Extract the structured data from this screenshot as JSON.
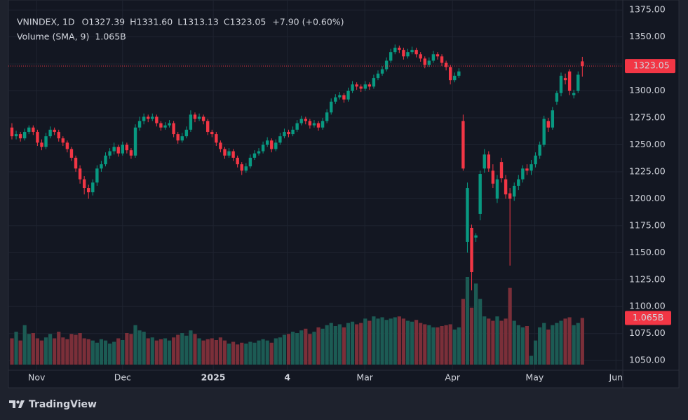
{
  "chart_data": {
    "type": "candlestick",
    "title": "VNINDEX, 1D",
    "ohlc_names": [
      "O",
      "H",
      "L",
      "C"
    ],
    "ohlc_labels": [
      "1327.39",
      "1331.60",
      "1313.13",
      "1323.05"
    ],
    "change_label": "+7.90 (+0.60%)",
    "volume_title": "Volume (SMA, 9)",
    "volume_label": "1.065B",
    "brand": "TradingView",
    "up_color": "#089981",
    "down_color": "#f23645",
    "volume_up_color": "#1c5b54",
    "volume_down_color": "#7b2f39",
    "grid": true,
    "ylim": [
      1041,
      1381
    ],
    "yticks": [
      {
        "value": 1050,
        "label": "1050.00"
      },
      {
        "value": 1075,
        "label": "1075.00"
      },
      {
        "value": 1100,
        "label": "1100.00"
      },
      {
        "value": 1125,
        "label": "1125.00"
      },
      {
        "value": 1150,
        "label": "1150.00"
      },
      {
        "value": 1175,
        "label": "1175.00"
      },
      {
        "value": 1200,
        "label": "1200.00"
      },
      {
        "value": 1225,
        "label": "1225.00"
      },
      {
        "value": 1250,
        "label": "1250.00"
      },
      {
        "value": 1275,
        "label": "1275.00"
      },
      {
        "value": 1300,
        "label": "1300.00"
      },
      {
        "value": 1325,
        "label": "1325.00"
      },
      {
        "value": 1350,
        "label": "1350.00"
      },
      {
        "value": 1375,
        "label": "1375.00"
      }
    ],
    "xlim": [
      -0.82,
      143.5
    ],
    "xticks": [
      {
        "value": 5.8,
        "label": "Nov"
      },
      {
        "value": 26,
        "label": "Dec"
      },
      {
        "value": 47.3,
        "label": "2025"
      },
      {
        "value": 64.7,
        "label": "4"
      },
      {
        "value": 82.9,
        "label": "Mar"
      },
      {
        "value": 103.5,
        "label": "Apr"
      },
      {
        "value": 122.8,
        "label": "May"
      },
      {
        "value": 141.9,
        "label": "Jun"
      }
    ],
    "volume_ylim": [
      0,
      2.0
    ],
    "candles": [
      [
        1266,
        1270,
        1255,
        1258
      ],
      [
        1258,
        1263,
        1255,
        1260
      ],
      [
        1260,
        1262,
        1253,
        1256
      ],
      [
        1256,
        1265,
        1254,
        1262
      ],
      [
        1262,
        1268,
        1260,
        1266
      ],
      [
        1266,
        1268,
        1259,
        1262
      ],
      [
        1262,
        1264,
        1249,
        1252
      ],
      [
        1252,
        1255,
        1245,
        1248
      ],
      [
        1248,
        1261,
        1246,
        1258
      ],
      [
        1258,
        1267,
        1256,
        1264
      ],
      [
        1264,
        1266,
        1259,
        1262
      ],
      [
        1262,
        1264,
        1253,
        1256
      ],
      [
        1256,
        1258,
        1249,
        1252
      ],
      [
        1252,
        1254,
        1243,
        1246
      ],
      [
        1246,
        1248,
        1235,
        1238
      ],
      [
        1238,
        1240,
        1225,
        1228
      ],
      [
        1228,
        1231,
        1214,
        1218
      ],
      [
        1218,
        1221,
        1204,
        1210
      ],
      [
        1210,
        1213,
        1200,
        1206
      ],
      [
        1206,
        1218,
        1203,
        1215
      ],
      [
        1215,
        1231,
        1212,
        1228
      ],
      [
        1228,
        1235,
        1225,
        1232
      ],
      [
        1232,
        1243,
        1230,
        1240
      ],
      [
        1240,
        1247,
        1237,
        1244
      ],
      [
        1244,
        1252,
        1241,
        1248
      ],
      [
        1248,
        1250,
        1239,
        1242
      ],
      [
        1242,
        1253,
        1240,
        1250
      ],
      [
        1250,
        1252,
        1242,
        1245
      ],
      [
        1245,
        1247,
        1237,
        1240
      ],
      [
        1240,
        1269,
        1238,
        1266
      ],
      [
        1266,
        1276,
        1263,
        1272
      ],
      [
        1272,
        1279,
        1269,
        1276
      ],
      [
        1276,
        1278,
        1271,
        1274
      ],
      [
        1274,
        1279,
        1272,
        1276
      ],
      [
        1276,
        1278,
        1267,
        1270
      ],
      [
        1270,
        1272,
        1263,
        1266
      ],
      [
        1266,
        1271,
        1264,
        1268
      ],
      [
        1268,
        1273,
        1266,
        1270
      ],
      [
        1270,
        1272,
        1257,
        1260
      ],
      [
        1260,
        1262,
        1251,
        1254
      ],
      [
        1254,
        1261,
        1252,
        1258
      ],
      [
        1258,
        1267,
        1256,
        1264
      ],
      [
        1264,
        1282,
        1262,
        1278
      ],
      [
        1278,
        1280,
        1271,
        1274
      ],
      [
        1274,
        1279,
        1272,
        1276
      ],
      [
        1276,
        1278,
        1269,
        1272
      ],
      [
        1272,
        1274,
        1259,
        1262
      ],
      [
        1262,
        1264,
        1257,
        1260
      ],
      [
        1260,
        1262,
        1249,
        1252
      ],
      [
        1252,
        1254,
        1243,
        1246
      ],
      [
        1246,
        1248,
        1237,
        1240
      ],
      [
        1240,
        1247,
        1238,
        1244
      ],
      [
        1244,
        1246,
        1235,
        1238
      ],
      [
        1238,
        1240,
        1229,
        1232
      ],
      [
        1232,
        1234,
        1222,
        1226
      ],
      [
        1226,
        1233,
        1224,
        1230
      ],
      [
        1230,
        1241,
        1228,
        1238
      ],
      [
        1238,
        1245,
        1236,
        1242
      ],
      [
        1242,
        1247,
        1240,
        1244
      ],
      [
        1244,
        1253,
        1242,
        1250
      ],
      [
        1250,
        1257,
        1248,
        1254
      ],
      [
        1254,
        1256,
        1243,
        1246
      ],
      [
        1246,
        1255,
        1244,
        1252
      ],
      [
        1252,
        1261,
        1250,
        1258
      ],
      [
        1258,
        1265,
        1256,
        1262
      ],
      [
        1262,
        1264,
        1257,
        1260
      ],
      [
        1260,
        1267,
        1258,
        1264
      ],
      [
        1264,
        1273,
        1262,
        1270
      ],
      [
        1270,
        1277,
        1268,
        1274
      ],
      [
        1274,
        1276,
        1269,
        1272
      ],
      [
        1272,
        1274,
        1265,
        1268
      ],
      [
        1268,
        1273,
        1266,
        1270
      ],
      [
        1270,
        1272,
        1263,
        1266
      ],
      [
        1266,
        1275,
        1264,
        1272
      ],
      [
        1272,
        1283,
        1270,
        1280
      ],
      [
        1280,
        1293,
        1278,
        1290
      ],
      [
        1290,
        1297,
        1288,
        1294
      ],
      [
        1294,
        1299,
        1292,
        1296
      ],
      [
        1296,
        1298,
        1289,
        1292
      ],
      [
        1292,
        1303,
        1290,
        1300
      ],
      [
        1300,
        1309,
        1298,
        1306
      ],
      [
        1306,
        1308,
        1301,
        1304
      ],
      [
        1304,
        1306,
        1299,
        1302
      ],
      [
        1302,
        1309,
        1300,
        1306
      ],
      [
        1306,
        1308,
        1301,
        1304
      ],
      [
        1304,
        1315,
        1302,
        1312
      ],
      [
        1312,
        1319,
        1310,
        1316
      ],
      [
        1316,
        1323,
        1314,
        1320
      ],
      [
        1320,
        1331,
        1318,
        1328
      ],
      [
        1328,
        1339,
        1326,
        1336
      ],
      [
        1336,
        1343,
        1334,
        1340
      ],
      [
        1340,
        1342,
        1335,
        1338
      ],
      [
        1338,
        1340,
        1329,
        1332
      ],
      [
        1332,
        1339,
        1330,
        1336
      ],
      [
        1336,
        1341,
        1334,
        1338
      ],
      [
        1338,
        1340,
        1331,
        1334
      ],
      [
        1334,
        1336,
        1327,
        1330
      ],
      [
        1330,
        1332,
        1321,
        1324
      ],
      [
        1324,
        1331,
        1322,
        1328
      ],
      [
        1328,
        1337,
        1326,
        1334
      ],
      [
        1334,
        1336,
        1329,
        1332
      ],
      [
        1332,
        1334,
        1323,
        1326
      ],
      [
        1326,
        1328,
        1319,
        1322
      ],
      [
        1322,
        1324,
        1306,
        1310
      ],
      [
        1310,
        1317,
        1308,
        1314
      ],
      [
        1314,
        1321,
        1312,
        1318
      ],
      [
        1272,
        1278,
        1226,
        1228
      ],
      [
        1160,
        1215,
        1150,
        1210
      ],
      [
        1173,
        1176,
        1115,
        1132
      ],
      [
        1164,
        1168,
        1160,
        1166
      ],
      [
        1186,
        1226,
        1180,
        1223
      ],
      [
        1228,
        1246,
        1224,
        1241
      ],
      [
        1241,
        1244,
        1225,
        1228
      ],
      [
        1226,
        1232,
        1210,
        1214
      ],
      [
        1200,
        1222,
        1196,
        1218
      ],
      [
        1234,
        1238,
        1215,
        1219
      ],
      [
        1218,
        1222,
        1200,
        1204
      ],
      [
        1205,
        1210,
        1138,
        1200
      ],
      [
        1202,
        1215,
        1198,
        1212
      ],
      [
        1212,
        1222,
        1208,
        1218
      ],
      [
        1218,
        1231,
        1215,
        1228
      ],
      [
        1228,
        1232,
        1222,
        1226
      ],
      [
        1226,
        1236,
        1222,
        1232
      ],
      [
        1232,
        1243,
        1229,
        1240
      ],
      [
        1240,
        1253,
        1237,
        1250
      ],
      [
        1250,
        1277,
        1248,
        1274
      ],
      [
        1272,
        1275,
        1262,
        1266
      ],
      [
        1266,
        1285,
        1264,
        1282
      ],
      [
        1290,
        1300,
        1287,
        1298
      ],
      [
        1298,
        1317,
        1295,
        1314
      ],
      [
        1312,
        1316,
        1306,
        1310
      ],
      [
        1318,
        1320,
        1296,
        1300
      ],
      [
        1296,
        1301,
        1293,
        1298
      ],
      [
        1300,
        1318,
        1298,
        1315
      ],
      [
        1327.39,
        1331.6,
        1313.13,
        1323.05
      ]
    ],
    "volumes": [
      0.6,
      0.75,
      0.55,
      0.9,
      0.7,
      0.72,
      0.6,
      0.55,
      0.62,
      0.7,
      0.6,
      0.75,
      0.62,
      0.58,
      0.7,
      0.68,
      0.72,
      0.6,
      0.58,
      0.55,
      0.5,
      0.58,
      0.55,
      0.48,
      0.52,
      0.6,
      0.56,
      0.72,
      0.7,
      0.9,
      0.78,
      0.75,
      0.6,
      0.62,
      0.55,
      0.58,
      0.6,
      0.55,
      0.62,
      0.68,
      0.72,
      0.66,
      0.78,
      0.7,
      0.6,
      0.55,
      0.58,
      0.6,
      0.56,
      0.62,
      0.55,
      0.48,
      0.52,
      0.46,
      0.5,
      0.48,
      0.52,
      0.5,
      0.55,
      0.58,
      0.55,
      0.5,
      0.6,
      0.62,
      0.68,
      0.7,
      0.75,
      0.72,
      0.78,
      0.82,
      0.7,
      0.75,
      0.85,
      0.82,
      0.9,
      0.95,
      0.88,
      0.92,
      0.85,
      0.95,
      0.98,
      0.92,
      0.95,
      1.05,
      1.0,
      1.1,
      1.05,
      1.08,
      1.02,
      1.05,
      1.08,
      1.1,
      1.05,
      1.0,
      0.98,
      1.02,
      0.95,
      0.92,
      0.9,
      0.85,
      0.85,
      0.88,
      0.9,
      0.92,
      0.8,
      0.85,
      1.5,
      2.0,
      1.3,
      1.85,
      1.5,
      1.1,
      1.05,
      1.0,
      1.1,
      1.0,
      1.05,
      1.75,
      1.0,
      0.9,
      0.85,
      0.88,
      0.2,
      0.55,
      0.85,
      0.95,
      0.8,
      0.9,
      0.95,
      1.0,
      1.05,
      1.08,
      0.9,
      0.95,
      1.065
    ]
  }
}
